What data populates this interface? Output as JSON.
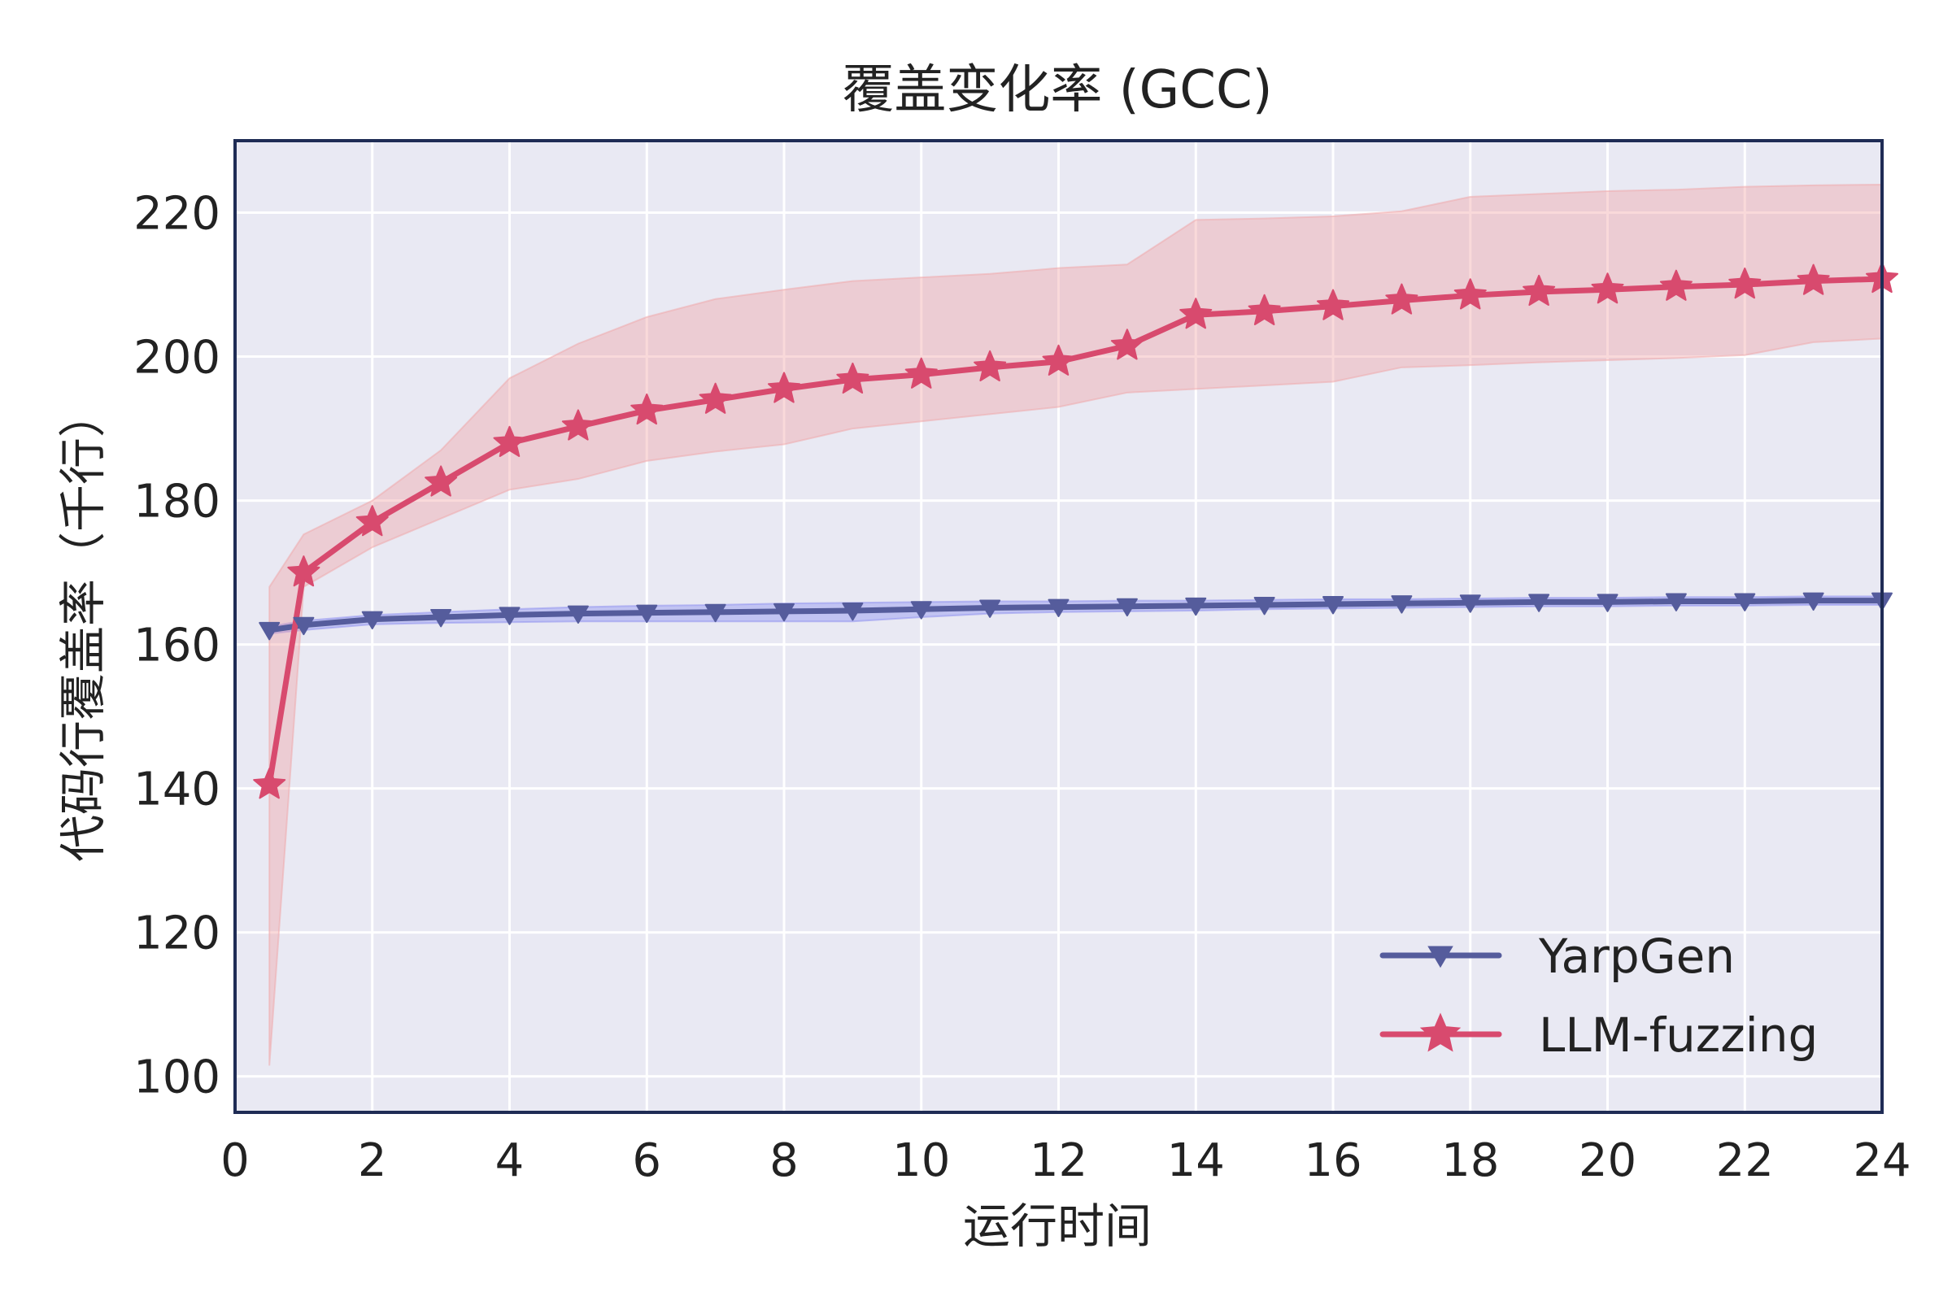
{
  "chart_data": {
    "type": "line",
    "title": "覆盖变化率 (GCC)",
    "xlabel": "运行时间",
    "ylabel": "代码行覆盖率（千行）",
    "xlim": [
      0,
      24
    ],
    "ylim": [
      95,
      230
    ],
    "xticks": [
      0,
      2,
      4,
      6,
      8,
      10,
      12,
      14,
      16,
      18,
      20,
      22,
      24
    ],
    "yticks": [
      100,
      120,
      140,
      160,
      180,
      200,
      220
    ],
    "grid": true,
    "legend_position": "bottom-right",
    "series": [
      {
        "name": "YarpGen",
        "color": "#555c9c",
        "band_color": "#8b8ef0",
        "marker": "triangle-down",
        "x": [
          0.5,
          1,
          2,
          3,
          4,
          5,
          6,
          7,
          8,
          9,
          10,
          11,
          12,
          13,
          14,
          15,
          16,
          17,
          18,
          19,
          20,
          21,
          22,
          23,
          24
        ],
        "y": [
          162.0,
          162.7,
          163.5,
          163.8,
          164.1,
          164.3,
          164.4,
          164.5,
          164.6,
          164.7,
          164.9,
          165.1,
          165.2,
          165.3,
          165.4,
          165.5,
          165.6,
          165.7,
          165.8,
          165.9,
          165.9,
          166.0,
          166.0,
          166.1,
          166.1
        ],
        "lower": [
          161.5,
          162.0,
          162.8,
          163.0,
          163.1,
          163.2,
          163.2,
          163.2,
          163.2,
          163.2,
          163.8,
          164.3,
          164.5,
          164.6,
          164.7,
          164.9,
          165.0,
          165.1,
          165.2,
          165.3,
          165.3,
          165.4,
          165.4,
          165.5,
          165.5
        ],
        "upper": [
          162.5,
          163.3,
          164.1,
          164.5,
          164.9,
          165.2,
          165.4,
          165.5,
          165.7,
          165.8,
          165.9,
          166.0,
          166.0,
          166.1,
          166.1,
          166.2,
          166.3,
          166.3,
          166.4,
          166.5,
          166.5,
          166.6,
          166.6,
          166.7,
          166.7
        ]
      },
      {
        "name": "LLM-fuzzing",
        "color": "#d84a6e",
        "band_color": "#f0a5a8",
        "marker": "star",
        "x": [
          0.5,
          1,
          2,
          3,
          4,
          5,
          6,
          7,
          8,
          9,
          10,
          11,
          12,
          13,
          14,
          15,
          16,
          17,
          18,
          19,
          20,
          21,
          22,
          23,
          24
        ],
        "y": [
          140.5,
          170.0,
          177.0,
          182.5,
          188.0,
          190.3,
          192.5,
          194.0,
          195.5,
          196.8,
          197.5,
          198.5,
          199.3,
          201.5,
          205.8,
          206.3,
          207.0,
          207.8,
          208.5,
          209.0,
          209.3,
          209.7,
          210.0,
          210.5,
          210.8
        ],
        "lower": [
          101.5,
          168.0,
          173.5,
          177.5,
          181.5,
          183.0,
          185.5,
          186.8,
          187.8,
          190.0,
          191.0,
          192.0,
          193.0,
          195.0,
          195.5,
          196.0,
          196.5,
          198.5,
          198.8,
          199.2,
          199.5,
          199.8,
          200.2,
          202.0,
          202.5
        ],
        "upper": [
          168.0,
          175.3,
          180.0,
          187.0,
          197.0,
          201.8,
          205.5,
          208.0,
          209.3,
          210.5,
          211.0,
          211.5,
          212.3,
          212.8,
          219.0,
          219.2,
          219.5,
          220.2,
          222.2,
          222.6,
          223.0,
          223.2,
          223.6,
          223.8,
          223.9
        ]
      }
    ]
  }
}
